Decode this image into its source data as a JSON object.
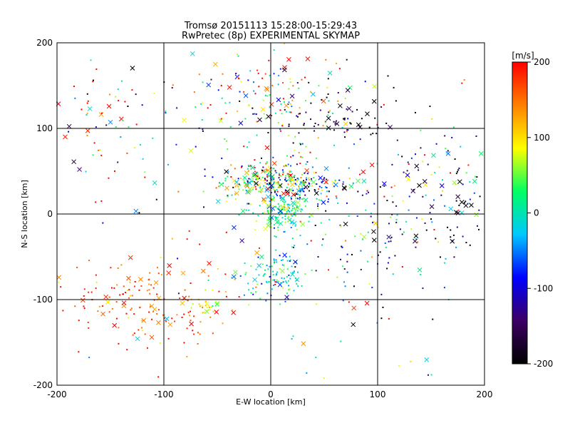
{
  "chart_data": {
    "type": "scatter",
    "title": "Tromsø 20151113 15:28:00-15:29:43",
    "subtitle": "RwPretec (8p) EXPERIMENTAL SKYMAP",
    "xlabel": "E-W location [km]",
    "ylabel": "N-S location [km]",
    "xlim": [
      -200,
      200
    ],
    "ylim": [
      -200,
      200
    ],
    "x_ticks": [
      "-200",
      "-100",
      "0",
      "100",
      "200"
    ],
    "y_ticks": [
      "-200",
      "-100",
      "0",
      "100",
      "200"
    ],
    "grid": true,
    "colorbar": {
      "unit": "[m/s]",
      "min": -200,
      "max": 200,
      "ticks": [
        "-200",
        "-100",
        "0",
        "100",
        "200"
      ],
      "colors": [
        "#000000",
        "#3c0064",
        "#0000ff",
        "#00c8ff",
        "#00ff64",
        "#ffff00",
        "#ff8000",
        "#ff0000"
      ]
    },
    "clusters": [
      {
        "cx": 0,
        "cy": 40,
        "sx": 25,
        "sy": 12,
        "n": 260,
        "v": 40,
        "vs": 110
      },
      {
        "cx": 40,
        "cy": 30,
        "sx": 25,
        "sy": 12,
        "n": 90,
        "v": -60,
        "vs": 80
      },
      {
        "cx": 10,
        "cy": 0,
        "sx": 12,
        "sy": 10,
        "n": 130,
        "v": 10,
        "vs": 35
      },
      {
        "cx": 5,
        "cy": -70,
        "sx": 15,
        "sy": 15,
        "n": 110,
        "v": -10,
        "vs": 40
      },
      {
        "cx": -110,
        "cy": -100,
        "sx": 40,
        "sy": 25,
        "n": 160,
        "v": 170,
        "vs": 40
      },
      {
        "cx": -60,
        "cy": -110,
        "sx": 10,
        "sy": 8,
        "n": 25,
        "v": 90,
        "vs": 30
      },
      {
        "cx": -160,
        "cy": 120,
        "sx": 30,
        "sy": 30,
        "n": 60,
        "v": 60,
        "vs": 200
      },
      {
        "cx": 0,
        "cy": 130,
        "sx": 40,
        "sy": 30,
        "n": 160,
        "v": 60,
        "vs": 130
      },
      {
        "cx": 60,
        "cy": 110,
        "sx": 30,
        "sy": 15,
        "n": 60,
        "v": -180,
        "vs": 30
      },
      {
        "cx": 160,
        "cy": 30,
        "sx": 30,
        "sy": 40,
        "n": 130,
        "v": -100,
        "vs": 150
      },
      {
        "cx": 90,
        "cy": -40,
        "sx": 40,
        "sy": 40,
        "n": 90,
        "v": -80,
        "vs": 120
      },
      {
        "cx": 0,
        "cy": 0,
        "sx": 110,
        "sy": 110,
        "n": 180,
        "v": 50,
        "vs": 150
      }
    ]
  }
}
